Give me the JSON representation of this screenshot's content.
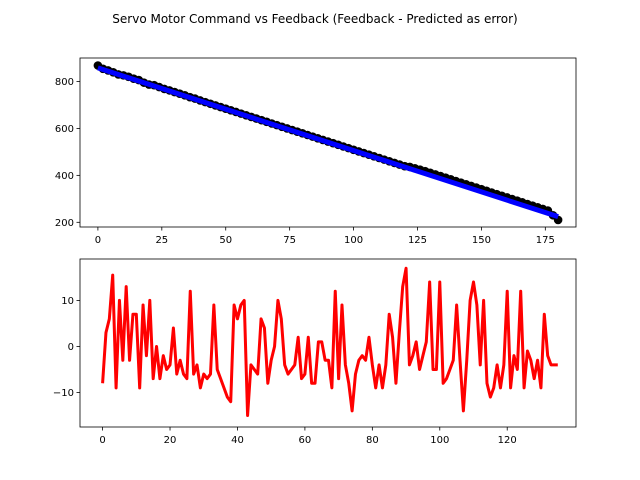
{
  "title": "Servo Motor Command vs Feedback (Feedback - Predicted as error)",
  "chart_data": [
    {
      "type": "scatter",
      "title": "",
      "xlabel": "",
      "ylabel": "",
      "xlim": [
        -7,
        187
      ],
      "ylim": [
        180,
        900
      ],
      "xticks": [
        0,
        25,
        50,
        75,
        100,
        125,
        150,
        175
      ],
      "yticks": [
        200,
        400,
        600,
        800
      ],
      "grid": false,
      "series": [
        {
          "kind": "points",
          "color": "#000000",
          "x": [
            0,
            2,
            4,
            6,
            8,
            10,
            12,
            14,
            16,
            18,
            20,
            22,
            24,
            26,
            28,
            30,
            32,
            34,
            36,
            38,
            40,
            42,
            44,
            46,
            48,
            50,
            52,
            54,
            56,
            58,
            60,
            62,
            64,
            66,
            68,
            70,
            72,
            74,
            76,
            78,
            80,
            82,
            84,
            86,
            88,
            90,
            92,
            94,
            96,
            98,
            100,
            102,
            104,
            106,
            108,
            110,
            112,
            114,
            116,
            118,
            120,
            122,
            124,
            126,
            128,
            130,
            132,
            134,
            136,
            138,
            140,
            142,
            144,
            146,
            148,
            150,
            152,
            154,
            156,
            158,
            160,
            162,
            164,
            166,
            168,
            170,
            172,
            174,
            176,
            178,
            180
          ],
          "y": [
            868,
            854,
            847,
            839,
            830,
            826,
            820,
            812,
            806,
            795,
            787,
            784,
            776,
            768,
            762,
            755,
            748,
            741,
            733,
            727,
            719,
            712,
            705,
            698,
            691,
            684,
            677,
            670,
            663,
            656,
            649,
            642,
            635,
            628,
            621,
            614,
            607,
            600,
            593,
            586,
            579,
            572,
            565,
            558,
            551,
            544,
            537,
            530,
            523,
            516,
            509,
            502,
            495,
            488,
            481,
            474,
            467,
            460,
            453,
            446,
            439,
            436,
            430,
            424,
            418,
            411,
            404,
            397,
            390,
            383,
            376,
            369,
            362,
            355,
            348,
            341,
            334,
            327,
            320,
            313,
            306,
            299,
            292,
            285,
            278,
            271,
            264,
            257,
            250,
            230,
            210
          ]
        },
        {
          "kind": "line",
          "color": "#0000ff",
          "x": [
            0,
            180
          ],
          "y": [
            858,
            224
          ]
        }
      ]
    },
    {
      "type": "line",
      "title": "",
      "xlabel": "",
      "ylabel": "",
      "xlim": [
        -6.7,
        140.4
      ],
      "ylim": [
        -17.5,
        19
      ],
      "xticks": [
        0,
        20,
        40,
        60,
        80,
        100,
        120
      ],
      "yticks": [
        -10,
        0,
        10
      ],
      "grid": false,
      "series": [
        {
          "color": "#ff0000",
          "y": [
            -8,
            3,
            6,
            15.5,
            -9,
            10,
            -3,
            13,
            -3,
            7,
            7,
            -9,
            9,
            -2,
            10,
            -7,
            0,
            -7,
            -2,
            -5,
            -4,
            4,
            -6,
            -3,
            -6,
            -7,
            12,
            -6,
            -4,
            -9,
            -6,
            -7,
            -6,
            9,
            -5,
            -7,
            -9,
            -11,
            -12,
            9,
            6,
            9,
            10,
            -15,
            -4,
            -5,
            -6,
            6,
            4,
            -8,
            -3,
            0,
            10,
            6,
            -4,
            -6,
            -5,
            -4,
            2,
            -7,
            -6,
            2,
            -8,
            -8,
            1,
            1,
            -3,
            -3,
            -9,
            12,
            -7,
            9,
            -4,
            -8,
            -14,
            -6,
            -3,
            -2,
            -3,
            2,
            -4,
            -9,
            -4,
            -9,
            -4,
            7,
            2,
            -8,
            3,
            13,
            17,
            -4,
            -2,
            1,
            -5,
            -2,
            1,
            14,
            -5,
            -5,
            14,
            -8,
            -7,
            -5,
            -3,
            9,
            -3,
            -14,
            -3,
            10,
            14,
            9,
            -4,
            10,
            -8,
            -11,
            -9,
            -4,
            -9,
            -4,
            12,
            -9,
            -2,
            -5,
            12,
            -9,
            -1,
            -3,
            -7,
            -3,
            -9,
            7,
            -2,
            -4,
            -4,
            -4
          ]
        }
      ]
    }
  ]
}
